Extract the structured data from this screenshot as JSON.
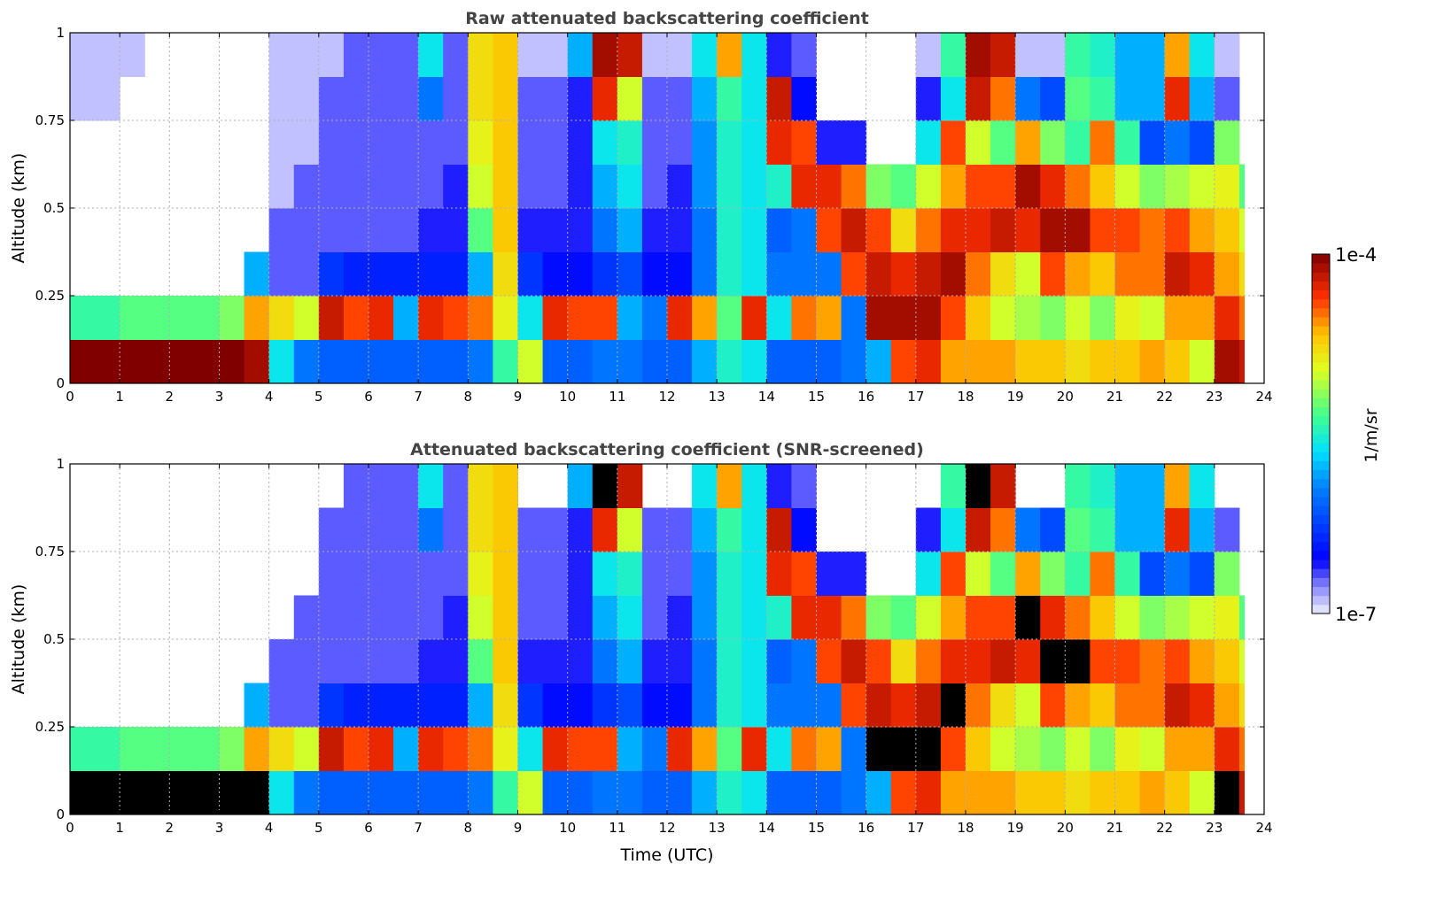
{
  "chart_data": {
    "type": "heatmap",
    "x_label": "Time (UTC)",
    "y_label": "Altitude (km)",
    "xlim": [
      0,
      24
    ],
    "ylim": [
      0,
      1
    ],
    "x_ticks": [
      "0",
      "1",
      "2",
      "3",
      "4",
      "5",
      "6",
      "7",
      "8",
      "9",
      "10",
      "11",
      "12",
      "13",
      "14",
      "15",
      "16",
      "17",
      "18",
      "19",
      "20",
      "21",
      "22",
      "23",
      "24"
    ],
    "y_ticks": [
      "0",
      "0.25",
      "0.5",
      "0.75",
      "1"
    ],
    "grid": true,
    "bin_hours": 0.5,
    "bin_km": 0.125,
    "data_end_hour": 23.6,
    "value_units": "log10(1/m/sr)",
    "colorbar": {
      "label": "1/m/sr",
      "max_label": "1e-4",
      "min_label": "1e-7",
      "min": -7,
      "max": -4,
      "placement": "right",
      "segments": 40
    },
    "panels": [
      {
        "title": "Raw attenuated backscattering coefficient",
        "mode": "raw"
      },
      {
        "title": "Attenuated backscattering coefficient (SNR-screened)",
        "mode": "screened",
        "null_below": -6.8,
        "black_at_or_above": -4.15,
        "over_color": "#000000"
      }
    ],
    "values_by_time_bottom_to_top": [
      [
        -4,
        -5.4,
        null,
        null,
        null,
        null,
        -6.9,
        -6.9
      ],
      [
        -4,
        -5.4,
        null,
        null,
        null,
        null,
        -6.9,
        -6.9
      ],
      [
        -4,
        -5.3,
        null,
        null,
        null,
        null,
        null,
        -6.9
      ],
      [
        -4,
        -5.3,
        null,
        null,
        null,
        null,
        null,
        null
      ],
      [
        -4,
        -5.3,
        null,
        null,
        null,
        null,
        null,
        null
      ],
      [
        -4,
        -5.3,
        null,
        null,
        null,
        null,
        null,
        null
      ],
      [
        -4,
        -5.2,
        null,
        null,
        null,
        null,
        null,
        null
      ],
      [
        -4.1,
        -4.6,
        -5.8,
        null,
        null,
        null,
        null,
        null
      ],
      [
        -5.6,
        -4.8,
        -6.7,
        -6.7,
        -6.9,
        -6.9,
        -6.9,
        -6.9
      ],
      [
        -6.0,
        -5.0,
        -6.7,
        -6.7,
        -6.7,
        -6.9,
        -6.9,
        -6.9
      ],
      [
        -6.1,
        -4.2,
        -6.3,
        -6.7,
        -6.7,
        -6.7,
        -6.7,
        -6.9
      ],
      [
        -6.1,
        -4.4,
        -6.4,
        -6.7,
        -6.7,
        -6.7,
        -6.7,
        -6.7
      ],
      [
        -6.1,
        -4.3,
        -6.4,
        -6.7,
        -6.7,
        -6.7,
        -6.7,
        -6.7
      ],
      [
        -6.1,
        -5.8,
        -6.4,
        -6.7,
        -6.7,
        -6.7,
        -6.7,
        -6.7
      ],
      [
        -6.1,
        -4.3,
        -6.4,
        -6.6,
        -6.7,
        -6.7,
        -6.0,
        -5.6
      ],
      [
        -6.1,
        -4.4,
        -6.4,
        -6.6,
        -6.6,
        -6.7,
        -6.7,
        -6.7
      ],
      [
        -6.0,
        -4.5,
        -5.8,
        -5.3,
        -5.0,
        -4.9,
        -4.8,
        -4.8
      ],
      [
        -5.4,
        -4.9,
        -4.8,
        -4.7,
        -4.7,
        -4.7,
        -4.7,
        -4.7
      ],
      [
        -5.0,
        -5.6,
        -6.3,
        -6.6,
        -6.7,
        -6.7,
        -6.7,
        -6.9
      ],
      [
        -6.1,
        -4.3,
        -6.5,
        -6.6,
        -6.7,
        -6.7,
        -6.7,
        -6.9
      ],
      [
        -6.1,
        -4.4,
        -6.5,
        -6.6,
        -6.6,
        -6.6,
        -6.6,
        -5.8
      ],
      [
        -6.0,
        -4.4,
        -6.3,
        -6.0,
        -5.8,
        -5.6,
        -4.3,
        -4.1
      ],
      [
        -6.0,
        -5.8,
        -6.2,
        -5.8,
        -5.6,
        -5.5,
        -5.0,
        -4.2
      ],
      [
        -6.1,
        -6.0,
        -6.5,
        -6.6,
        -6.7,
        -6.7,
        -6.7,
        -6.9
      ],
      [
        -6.1,
        -4.3,
        -6.5,
        -6.6,
        -6.6,
        -6.7,
        -6.7,
        -6.9
      ],
      [
        -5.8,
        -4.6,
        -6.0,
        -6.0,
        -5.9,
        -5.9,
        -5.8,
        -5.6
      ],
      [
        -5.5,
        -5.3,
        -5.5,
        -5.5,
        -5.5,
        -5.5,
        -5.4,
        -4.6
      ],
      [
        -5.6,
        -4.3,
        -5.6,
        -5.6,
        -5.6,
        -5.6,
        -5.6,
        -5.6
      ],
      [
        -6.1,
        -5.6,
        -6.0,
        -6.1,
        -5.5,
        -4.3,
        -4.2,
        -6.6
      ],
      [
        -6.1,
        -4.5,
        -6.0,
        -6.0,
        -4.3,
        -4.4,
        -6.5,
        -6.7
      ],
      [
        -6.1,
        -4.6,
        -6.0,
        -4.4,
        -4.3,
        -6.6,
        null,
        null
      ],
      [
        -6.0,
        -6.0,
        -4.4,
        -4.2,
        -4.5,
        -6.6,
        null,
        null
      ],
      [
        -5.8,
        -4.1,
        -4.2,
        -4.4,
        -5.2,
        null,
        null,
        null
      ],
      [
        -4.4,
        -4.1,
        -4.3,
        -4.8,
        -5.3,
        null,
        null,
        null
      ],
      [
        -4.3,
        -4.1,
        -4.2,
        -4.5,
        -5.0,
        -5.6,
        -6.6,
        -6.9
      ],
      [
        -4.6,
        -4.4,
        -4.1,
        -4.3,
        -4.6,
        -4.4,
        -5.6,
        -5.4
      ],
      [
        -4.6,
        -4.7,
        -4.5,
        -4.3,
        -4.4,
        -5.0,
        -4.2,
        -4.1
      ],
      [
        -4.6,
        -5.0,
        -4.8,
        -4.2,
        -4.4,
        -5.3,
        -4.5,
        -4.2
      ],
      [
        -4.7,
        -5.1,
        -5.0,
        -4.3,
        -4.1,
        -4.6,
        -6.0,
        -6.9
      ],
      [
        -4.7,
        -5.2,
        -4.4,
        -4.1,
        -4.3,
        -5.2,
        -6.2,
        -6.9
      ],
      [
        -4.8,
        -5.0,
        -4.6,
        -4.1,
        -4.5,
        -5.4,
        -5.3,
        -5.4
      ],
      [
        -4.7,
        -5.2,
        -4.7,
        -4.4,
        -4.7,
        -4.5,
        -5.4,
        -5.5
      ],
      [
        -4.7,
        -4.9,
        -4.5,
        -4.4,
        -5.0,
        -5.4,
        -5.8,
        -5.8
      ],
      [
        -4.6,
        -5.0,
        -4.5,
        -4.5,
        -5.2,
        -6.2,
        -5.8,
        -5.8
      ],
      [
        -4.7,
        -4.6,
        -4.2,
        -4.4,
        -5.1,
        -6.0,
        -4.3,
        -4.6
      ],
      [
        -5.0,
        -4.6,
        -4.3,
        -4.6,
        -5.0,
        -6.2,
        -5.8,
        -5.6
      ],
      [
        -4.1,
        -4.3,
        -4.6,
        -4.7,
        -4.9,
        -5.2,
        -6.7,
        -6.9
      ],
      [
        -4.2,
        -4.5,
        -4.8,
        -5.0,
        -5.3,
        null,
        null,
        null
      ]
    ]
  }
}
